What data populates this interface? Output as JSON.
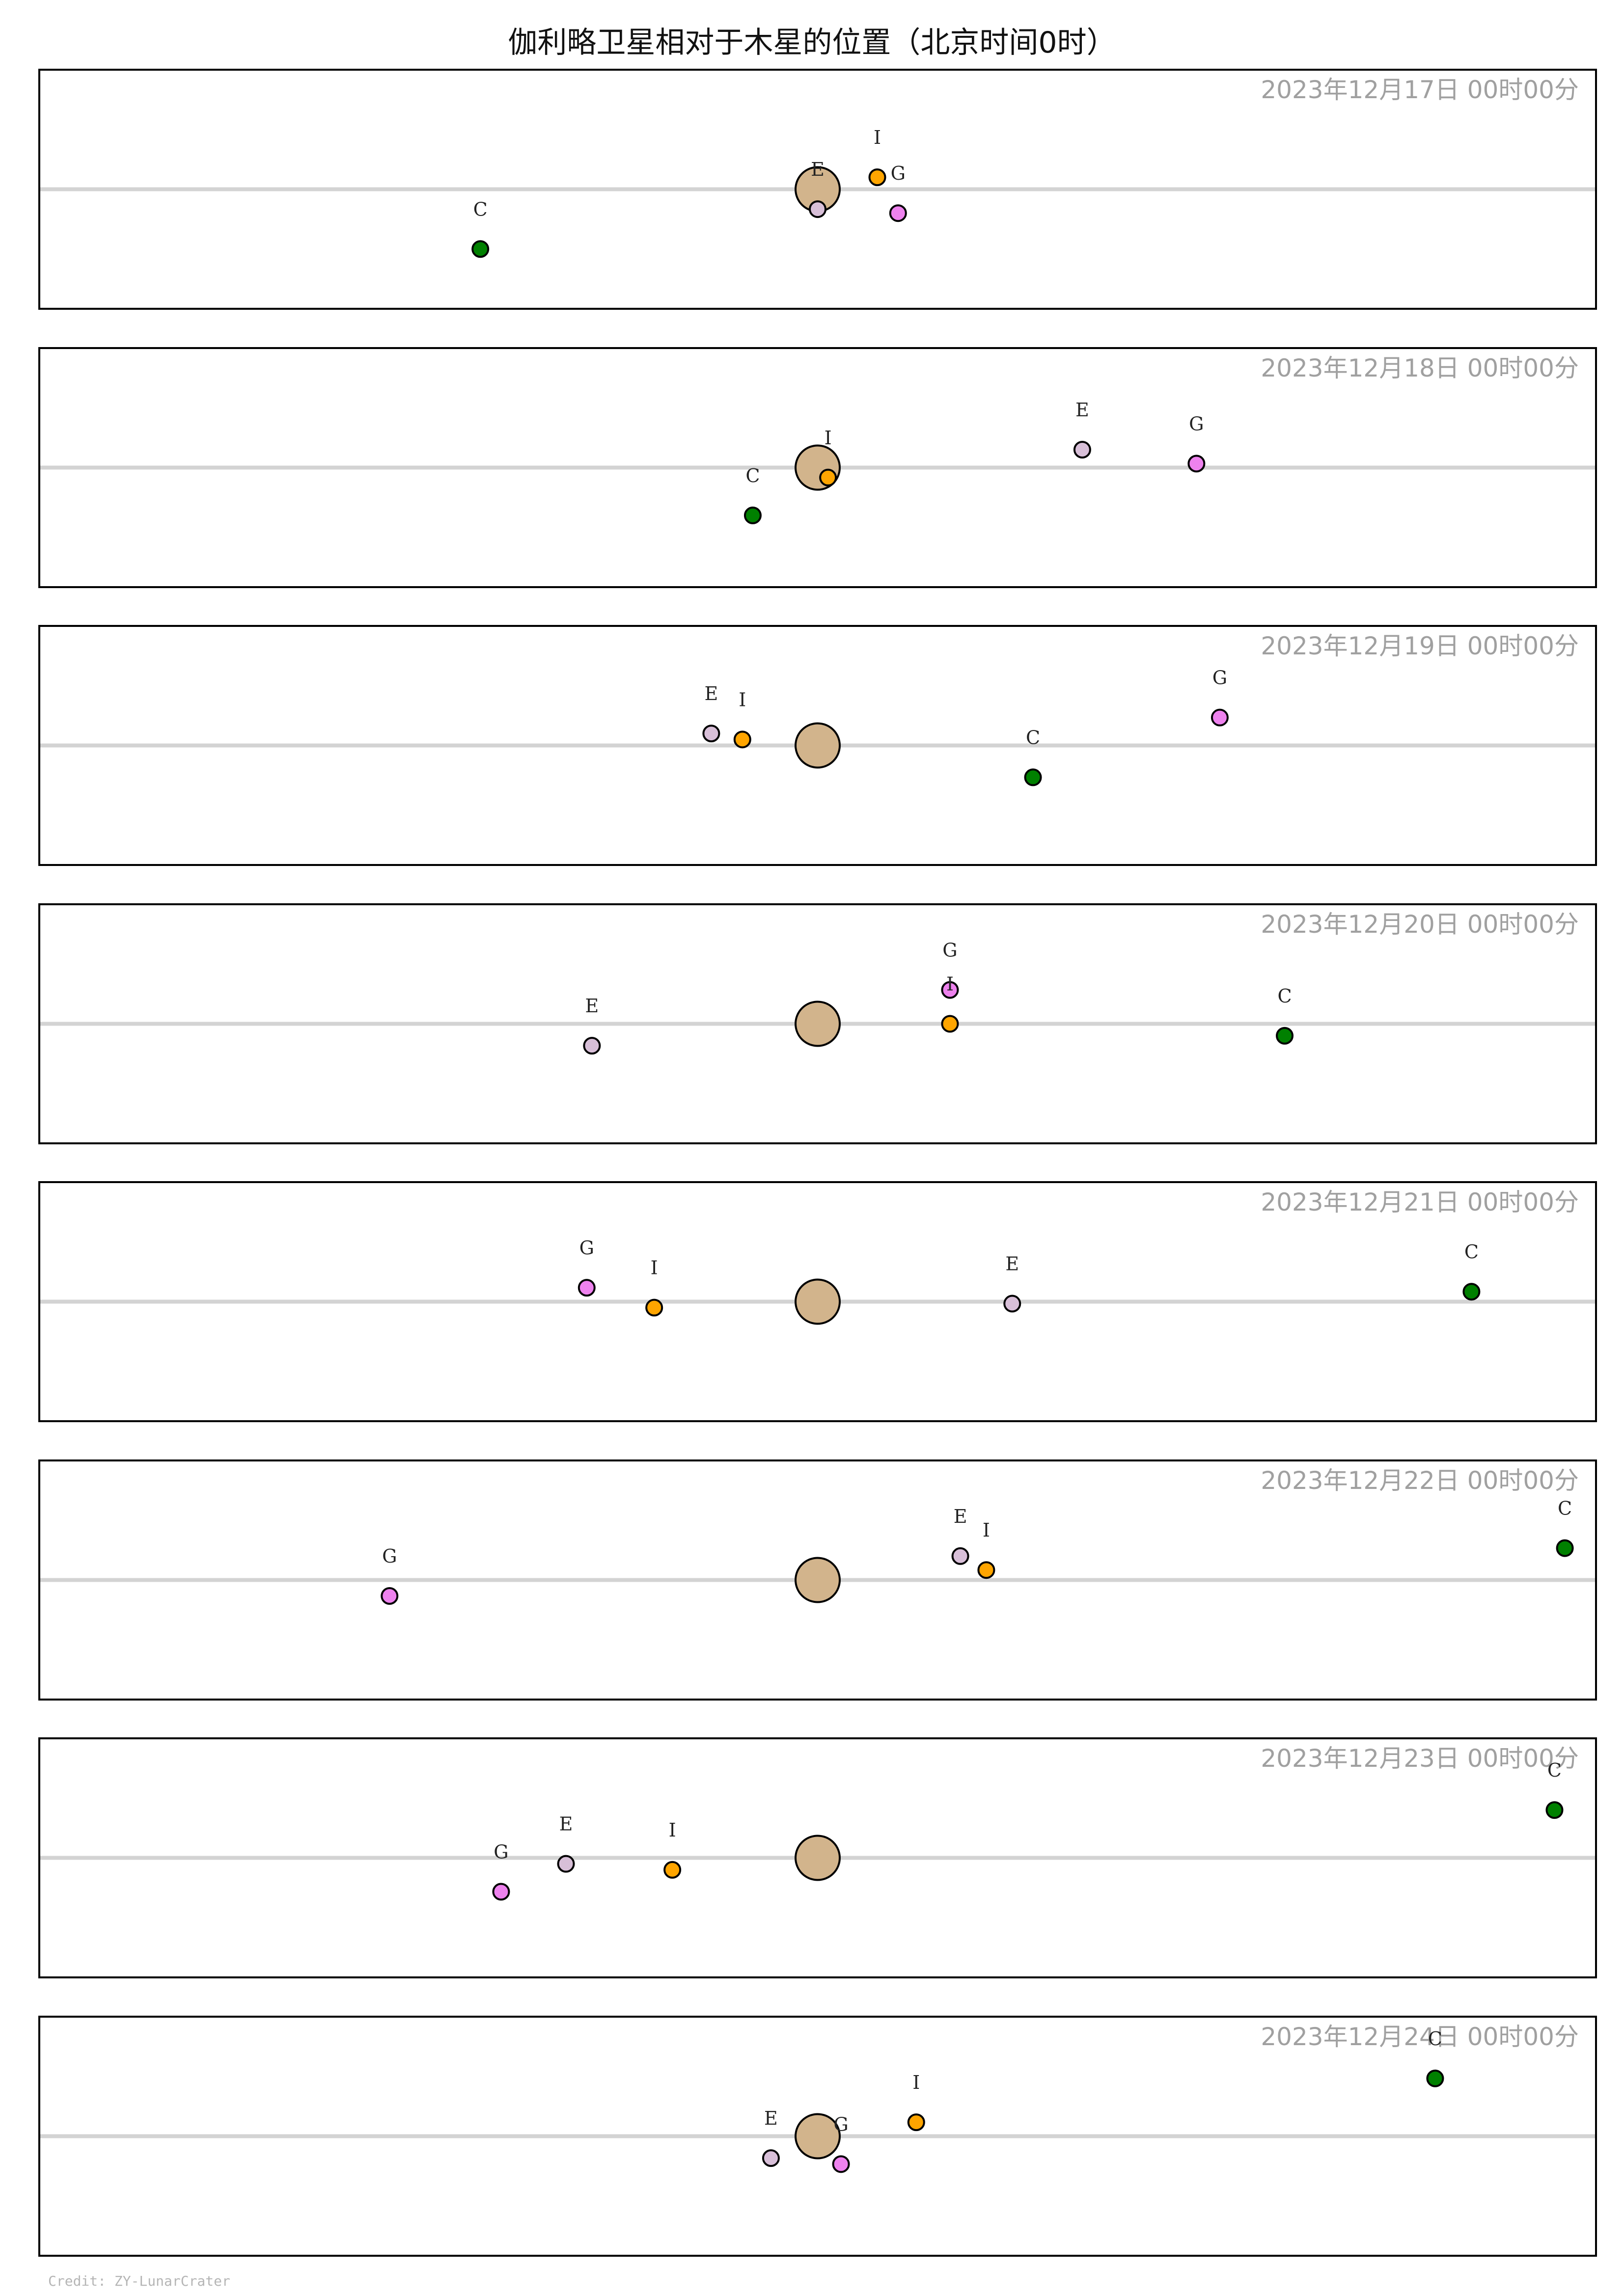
{
  "title": "伽利略卫星相对于木星的位置（北京时间0时）",
  "credit": "Credit: ZY-LunarCrater",
  "colors": {
    "I": "#ffa500",
    "E": "#d8bfd8",
    "G": "#ee82ee",
    "C": "#008000",
    "jupiter": "#d2b48c",
    "equator": "#d3d3d3",
    "date_text": "#a0a0a0"
  },
  "chart_data": {
    "type": "scatter",
    "xlim": [
      -30,
      30
    ],
    "ylim": [
      -3,
      3
    ],
    "grid": false,
    "panels": [
      {
        "label": "2023年12月17日  00时00分",
        "moons": [
          {
            "name": "C",
            "x": -13.0,
            "y": -1.5
          },
          {
            "name": "E",
            "x": 0.0,
            "y": -0.5
          },
          {
            "name": "I",
            "x": 2.3,
            "y": 0.3
          },
          {
            "name": "G",
            "x": 3.1,
            "y": -0.6
          }
        ]
      },
      {
        "label": "2023年12月18日  00时00分",
        "moons": [
          {
            "name": "C",
            "x": -2.5,
            "y": -1.2
          },
          {
            "name": "I",
            "x": 0.4,
            "y": -0.25
          },
          {
            "name": "E",
            "x": 10.2,
            "y": 0.45
          },
          {
            "name": "G",
            "x": 14.6,
            "y": 0.1
          }
        ]
      },
      {
        "label": "2023年12月19日  00时00分",
        "moons": [
          {
            "name": "E",
            "x": -4.1,
            "y": 0.3
          },
          {
            "name": "I",
            "x": -2.9,
            "y": 0.15
          },
          {
            "name": "C",
            "x": 8.3,
            "y": -0.8
          },
          {
            "name": "G",
            "x": 15.5,
            "y": 0.7
          }
        ]
      },
      {
        "label": "2023年12月20日  00时00分",
        "moons": [
          {
            "name": "E",
            "x": -8.7,
            "y": -0.55
          },
          {
            "name": "G",
            "x": 5.1,
            "y": 0.85
          },
          {
            "name": "I",
            "x": 5.1,
            "y": 0.0
          },
          {
            "name": "C",
            "x": 18.0,
            "y": -0.3
          }
        ]
      },
      {
        "label": "2023年12月21日  00时00分",
        "moons": [
          {
            "name": "G",
            "x": -8.9,
            "y": 0.35
          },
          {
            "name": "I",
            "x": -6.3,
            "y": -0.15
          },
          {
            "name": "E",
            "x": 7.5,
            "y": -0.05
          },
          {
            "name": "C",
            "x": 25.2,
            "y": 0.25
          }
        ]
      },
      {
        "label": "2023年12月22日  00时00分",
        "moons": [
          {
            "name": "G",
            "x": -16.5,
            "y": -0.4
          },
          {
            "name": "E",
            "x": 5.5,
            "y": 0.6
          },
          {
            "name": "I",
            "x": 6.5,
            "y": 0.25
          },
          {
            "name": "C",
            "x": 28.8,
            "y": 0.8
          }
        ]
      },
      {
        "label": "2023年12月23日  00时00分",
        "moons": [
          {
            "name": "G",
            "x": -12.2,
            "y": -0.85
          },
          {
            "name": "E",
            "x": -9.7,
            "y": -0.15
          },
          {
            "name": "I",
            "x": -5.6,
            "y": -0.3
          },
          {
            "name": "C",
            "x": 28.4,
            "y": 1.2
          }
        ]
      },
      {
        "label": "2023年12月24日  00时00分",
        "moons": [
          {
            "name": "E",
            "x": -1.8,
            "y": -0.55
          },
          {
            "name": "G",
            "x": 0.9,
            "y": -0.7
          },
          {
            "name": "I",
            "x": 3.8,
            "y": 0.35
          },
          {
            "name": "C",
            "x": 23.8,
            "y": 1.45
          }
        ]
      }
    ]
  }
}
